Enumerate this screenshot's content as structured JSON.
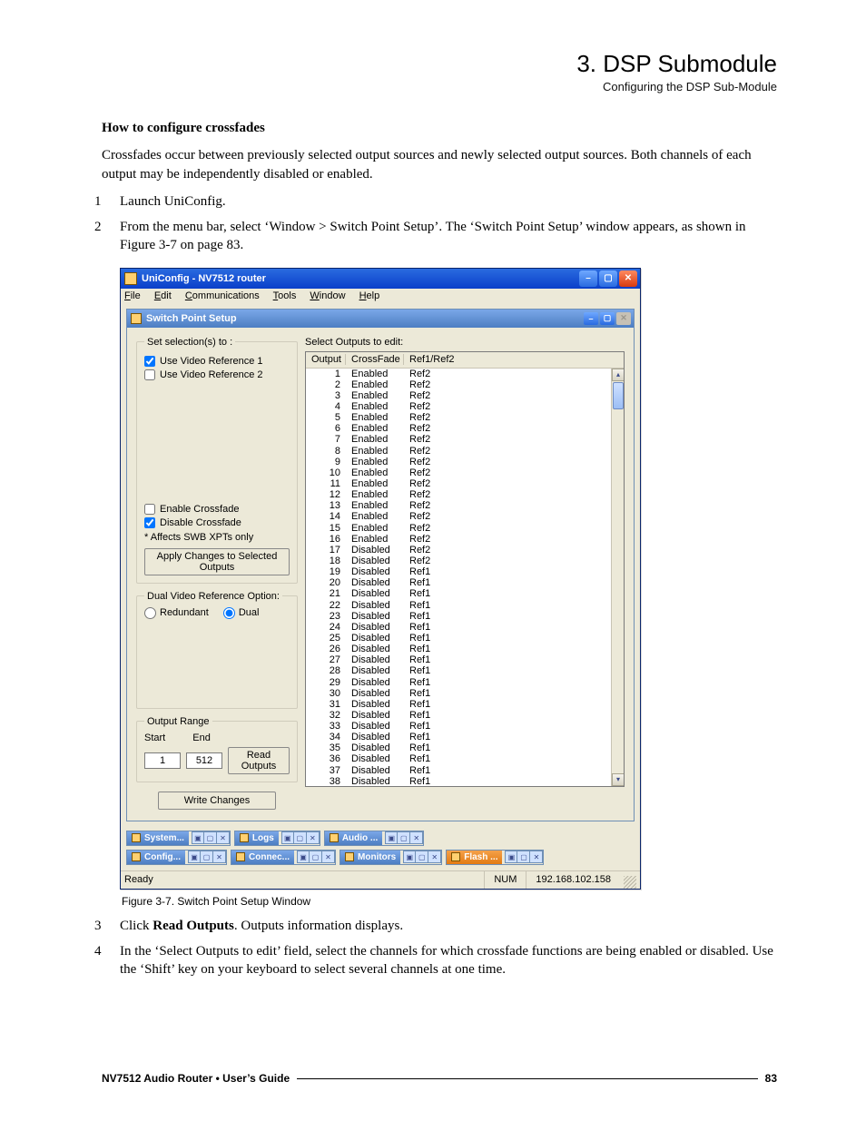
{
  "header": {
    "title": "3. DSP Submodule",
    "subtitle": "Configuring the DSP Sub-Module"
  },
  "intro_heading": "How to configure crossfades",
  "intro_para": "Crossfades occur between previously selected output sources and newly selected output sources. Both channels of each output may be independently disabled or enabled.",
  "steps": {
    "s1": "Launch UniConfig.",
    "s2": "From the menu bar, select ‘Window > Switch Point Setup’. The ‘Switch Point Setup’ window appears, as shown in Figure 3-7 on page 83.",
    "s3_pre": "Click ",
    "s3_bold": "Read Outputs",
    "s3_post": ". Outputs information displays.",
    "s4": "In the ‘Select Outputs to edit’ field, select the channels for which crossfade functions are being enabled or disabled. Use the ‘Shift’ key on your keyboard to select several channels at one time."
  },
  "fig_caption": "Figure 3-7. Switch Point Setup Window",
  "footer": {
    "product": "NV7512 Audio Router  •  User’s Guide",
    "page": "83"
  },
  "win": {
    "title": "UniConfig - NV7512 router",
    "menus": {
      "file": "File",
      "edit": "Edit",
      "comm": "Communications",
      "tools": "Tools",
      "window": "Window",
      "help": "Help"
    },
    "child_title": "Switch Point Setup",
    "set_sel_legend": "Set selection(s) to :",
    "use_ref1": "Use Video Reference 1",
    "use_ref2": "Use Video Reference 2",
    "enable_cf": "Enable Crossfade",
    "disable_cf": "Disable Crossfade",
    "affects_note": "* Affects SWB XPTs only",
    "apply_btn": "Apply Changes to Selected Outputs",
    "dual_legend": "Dual Video Reference Option:",
    "redundant": "Redundant",
    "dual": "Dual",
    "out_range_legend": "Output Range",
    "start_lbl": "Start",
    "end_lbl": "End",
    "start_val": "1",
    "end_val": "512",
    "read_btn": "Read Outputs",
    "write_btn": "Write Changes",
    "sel_out_lbl": "Select Outputs to edit:",
    "hdr_output": "Output",
    "hdr_cf": "CrossFade",
    "hdr_ref": "Ref1/Ref2",
    "rows": [
      {
        "o": "1",
        "c": "Enabled",
        "r": "Ref2"
      },
      {
        "o": "2",
        "c": "Enabled",
        "r": "Ref2"
      },
      {
        "o": "3",
        "c": "Enabled",
        "r": "Ref2"
      },
      {
        "o": "4",
        "c": "Enabled",
        "r": "Ref2"
      },
      {
        "o": "5",
        "c": "Enabled",
        "r": "Ref2"
      },
      {
        "o": "6",
        "c": "Enabled",
        "r": "Ref2"
      },
      {
        "o": "7",
        "c": "Enabled",
        "r": "Ref2"
      },
      {
        "o": "8",
        "c": "Enabled",
        "r": "Ref2"
      },
      {
        "o": "9",
        "c": "Enabled",
        "r": "Ref2"
      },
      {
        "o": "10",
        "c": "Enabled",
        "r": "Ref2"
      },
      {
        "o": "11",
        "c": "Enabled",
        "r": "Ref2"
      },
      {
        "o": "12",
        "c": "Enabled",
        "r": "Ref2"
      },
      {
        "o": "13",
        "c": "Enabled",
        "r": "Ref2"
      },
      {
        "o": "14",
        "c": "Enabled",
        "r": "Ref2"
      },
      {
        "o": "15",
        "c": "Enabled",
        "r": "Ref2"
      },
      {
        "o": "16",
        "c": "Enabled",
        "r": "Ref2"
      },
      {
        "o": "17",
        "c": "Disabled",
        "r": "Ref2"
      },
      {
        "o": "18",
        "c": "Disabled",
        "r": "Ref2"
      },
      {
        "o": "19",
        "c": "Disabled",
        "r": "Ref1"
      },
      {
        "o": "20",
        "c": "Disabled",
        "r": "Ref1"
      },
      {
        "o": "21",
        "c": "Disabled",
        "r": "Ref1"
      },
      {
        "o": "22",
        "c": "Disabled",
        "r": "Ref1"
      },
      {
        "o": "23",
        "c": "Disabled",
        "r": "Ref1"
      },
      {
        "o": "24",
        "c": "Disabled",
        "r": "Ref1"
      },
      {
        "o": "25",
        "c": "Disabled",
        "r": "Ref1"
      },
      {
        "o": "26",
        "c": "Disabled",
        "r": "Ref1"
      },
      {
        "o": "27",
        "c": "Disabled",
        "r": "Ref1"
      },
      {
        "o": "28",
        "c": "Disabled",
        "r": "Ref1"
      },
      {
        "o": "29",
        "c": "Disabled",
        "r": "Ref1"
      },
      {
        "o": "30",
        "c": "Disabled",
        "r": "Ref1"
      },
      {
        "o": "31",
        "c": "Disabled",
        "r": "Ref1"
      },
      {
        "o": "32",
        "c": "Disabled",
        "r": "Ref1"
      },
      {
        "o": "33",
        "c": "Disabled",
        "r": "Ref1"
      },
      {
        "o": "34",
        "c": "Disabled",
        "r": "Ref1"
      },
      {
        "o": "35",
        "c": "Disabled",
        "r": "Ref1"
      },
      {
        "o": "36",
        "c": "Disabled",
        "r": "Ref1"
      },
      {
        "o": "37",
        "c": "Disabled",
        "r": "Ref1"
      },
      {
        "o": "38",
        "c": "Disabled",
        "r": "Ref1"
      }
    ],
    "mdi": {
      "system": "System...",
      "logs": "Logs",
      "audio": "Audio ...",
      "config": "Config...",
      "connec": "Connec...",
      "monitors": "Monitors",
      "flash": "Flash ..."
    },
    "status": {
      "ready": "Ready",
      "num": "NUM",
      "ip": "192.168.102.158"
    }
  }
}
